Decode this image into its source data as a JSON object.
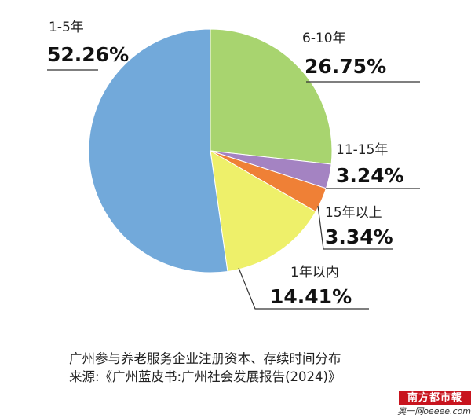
{
  "chart_data": {
    "type": "pie",
    "slices": [
      {
        "category": "6-10年",
        "value": 26.75,
        "label": "26.75%",
        "color": "#a8d46f"
      },
      {
        "category": "11-15年",
        "value": 3.24,
        "label": "3.24%",
        "color": "#a483c2"
      },
      {
        "category": "15年以上",
        "value": 3.34,
        "label": "3.34%",
        "color": "#ef8036"
      },
      {
        "category": "1年以内",
        "value": 14.41,
        "label": "14.41%",
        "color": "#eef06a"
      },
      {
        "category": "1-5年",
        "value": 52.26,
        "label": "52.26%",
        "color": "#72a9da"
      }
    ]
  },
  "caption": {
    "line1": "广州参与养老服务企业注册资本、存续时间分布",
    "line2": "来源:《广州蓝皮书:广州社会发展报告(2024)》"
  },
  "watermark": {
    "top": "南方都市報",
    "bottom": "奥一网oeeee.com"
  }
}
